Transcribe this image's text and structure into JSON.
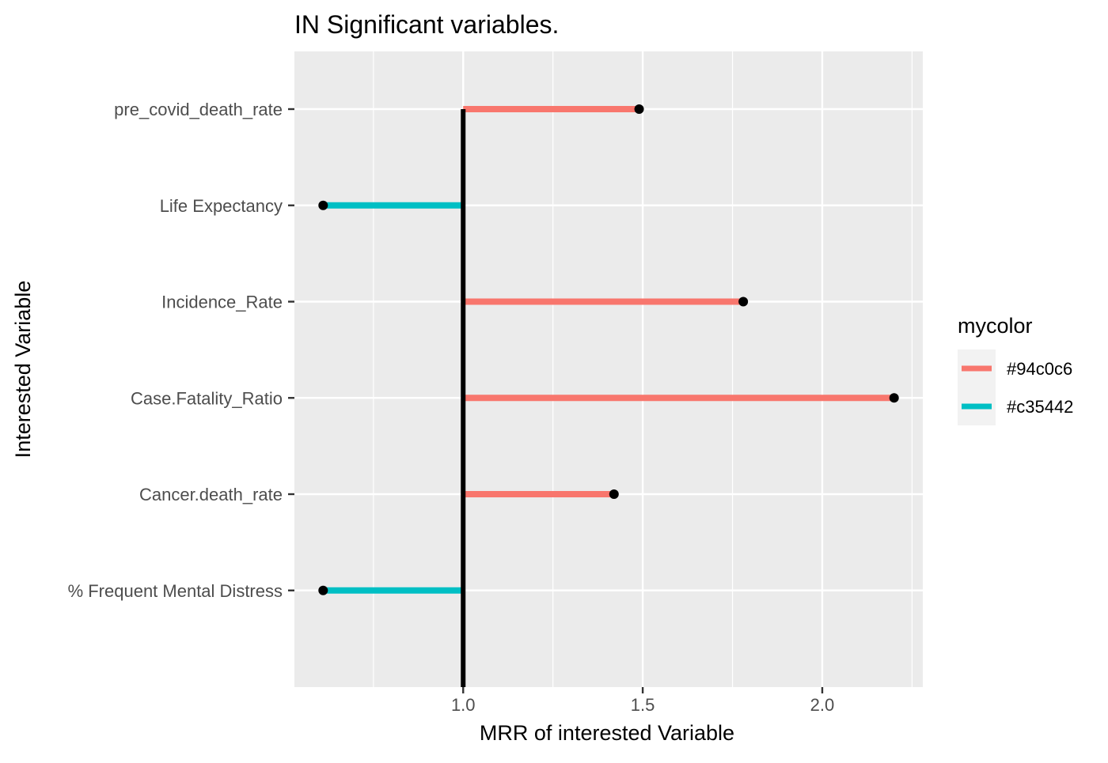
{
  "chart_data": {
    "type": "lollipop",
    "title": "IN Significant variables.",
    "xlabel": "MRR of interested Variable",
    "ylabel": "Interested Variable",
    "xlim": [
      0.53,
      2.28
    ],
    "xticks": [
      1.0,
      1.5,
      2.0
    ],
    "xtick_labels": [
      "1.0",
      "1.5",
      "2.0"
    ],
    "reference_x": 1.0,
    "grid": true,
    "legend": {
      "title": "mycolor",
      "placement": "right",
      "entries": [
        {
          "label": "#94c0c6",
          "color": "#F8766D"
        },
        {
          "label": "#c35442",
          "color": "#00BFC4"
        }
      ]
    },
    "categories": [
      "pre_covid_death_rate",
      "Life Expectancy",
      "Incidence_Rate",
      "Case.Fatality_Ratio",
      "Cancer.death_rate",
      "% Frequent Mental Distress"
    ],
    "values": [
      1.49,
      0.61,
      1.78,
      2.2,
      1.42,
      0.61
    ],
    "groups": [
      "#94c0c6",
      "#c35442",
      "#94c0c6",
      "#94c0c6",
      "#94c0c6",
      "#c35442"
    ]
  }
}
